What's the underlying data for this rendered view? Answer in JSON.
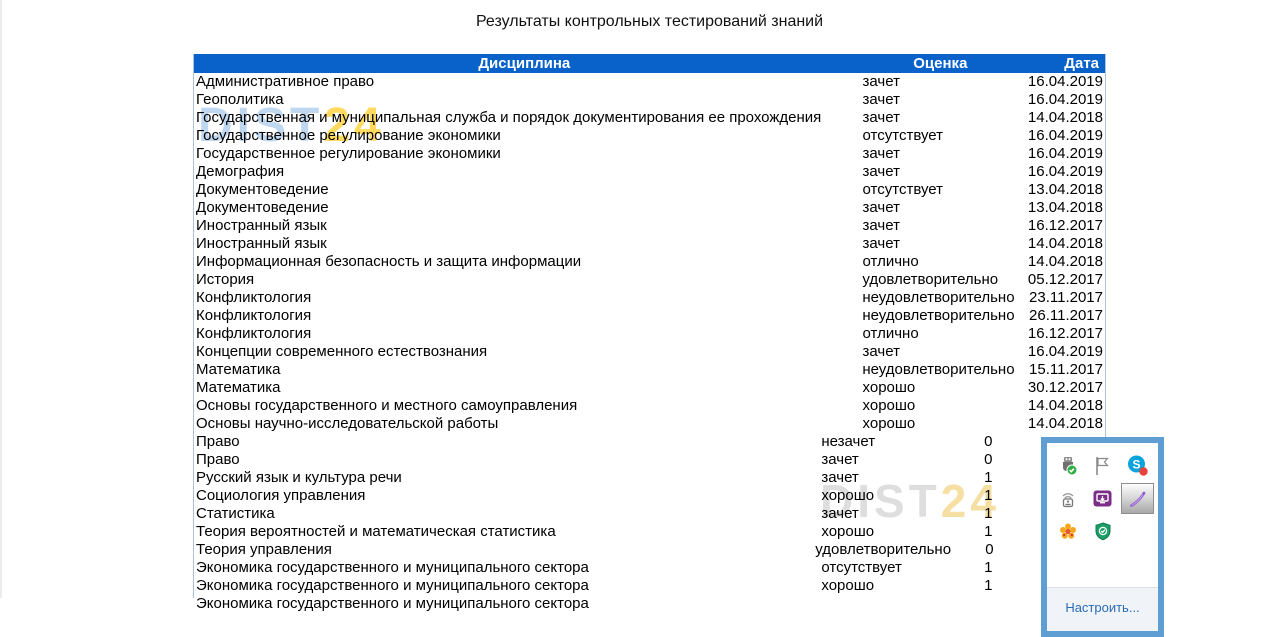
{
  "page": {
    "title": "Результаты контрольных тестирований знаний"
  },
  "colors": {
    "header_bg": "#0862ca",
    "header_text": "#ffffff",
    "table_border": "#a9c3da",
    "popup_border": "#5f9ed2",
    "link": "#2b6cb8",
    "watermark_blue": "#82afe1",
    "watermark_yellow": "#ffcd28",
    "watermark_gray": "#d9d9d9",
    "watermark_cream": "#eec458"
  },
  "table": {
    "headers": {
      "discipline": "Дисциплина",
      "grade": "Оценка",
      "date": "Дата"
    },
    "rows": [
      {
        "d": "Административное право",
        "g": "зачет",
        "t": "16.04.2019",
        "frag": false
      },
      {
        "d": "Геополитика",
        "g": "зачет",
        "t": "16.04.2019",
        "frag": false
      },
      {
        "d": "Государственная и муниципальная служба и порядок документирования ее прохождения",
        "g": "зачет",
        "t": "14.04.2018",
        "frag": false
      },
      {
        "d": "Государственное регулирование экономики",
        "g": "отсутствует",
        "t": "16.04.2019",
        "frag": false
      },
      {
        "d": "Государственное регулирование экономики",
        "g": "зачет",
        "t": "16.04.2019",
        "frag": false
      },
      {
        "d": "Демография",
        "g": "зачет",
        "t": "16.04.2019",
        "frag": false
      },
      {
        "d": "Документоведение",
        "g": "отсутствует",
        "t": "13.04.2018",
        "frag": false
      },
      {
        "d": "Документоведение",
        "g": "зачет",
        "t": "13.04.2018",
        "frag": false
      },
      {
        "d": "Иностранный язык",
        "g": "зачет",
        "t": "16.12.2017",
        "frag": false
      },
      {
        "d": "Иностранный язык",
        "g": "зачет",
        "t": "14.04.2018",
        "frag": false
      },
      {
        "d": "Информационная безопасность и защита информации",
        "g": "отлично",
        "t": "14.04.2018",
        "frag": false
      },
      {
        "d": "История",
        "g": "удовлетворительно",
        "t": "05.12.2017",
        "frag": false
      },
      {
        "d": "Конфликтология",
        "g": "неудовлетворительно",
        "t": "23.11.2017",
        "frag": false
      },
      {
        "d": "Конфликтология",
        "g": "неудовлетворительно",
        "t": "26.11.2017",
        "frag": false
      },
      {
        "d": "Конфликтология",
        "g": "отлично",
        "t": "16.12.2017",
        "frag": false
      },
      {
        "d": "Концепции современного естествознания",
        "g": "зачет",
        "t": "16.04.2019",
        "frag": false
      },
      {
        "d": "Математика",
        "g": "неудовлетворительно",
        "t": "15.11.2017",
        "frag": false
      },
      {
        "d": "Математика",
        "g": "хорошо",
        "t": "30.12.2017",
        "frag": false
      },
      {
        "d": "Основы государственного и местного самоуправления",
        "g": "хорошо",
        "t": "14.04.2018",
        "frag": false
      },
      {
        "d": "Основы научно-исследовательской работы",
        "g": "хорошо",
        "t": "14.04.2018",
        "frag": false
      },
      {
        "d": "Право",
        "g": "незачет",
        "t": "0",
        "frag": true
      },
      {
        "d": "Право",
        "g": "зачет",
        "t": "0",
        "frag": true
      },
      {
        "d": "Русский язык и культура речи",
        "g": "зачет",
        "t": "1",
        "frag": true
      },
      {
        "d": "Социология управления",
        "g": "хорошо",
        "t": "1",
        "frag": true
      },
      {
        "d": "Статистика",
        "g": "зачет",
        "t": "1",
        "frag": true
      },
      {
        "d": "Теория вероятностей и математическая статистика",
        "g": "хорошо",
        "t": "1",
        "frag": true
      },
      {
        "d": "Теория управления",
        "g": "удовлетворительно",
        "t": "0",
        "frag": true
      },
      {
        "d": "Экономика государственного и муниципального сектора",
        "g": "отсутствует",
        "t": "1",
        "frag": true
      },
      {
        "d": "Экономика государственного и муниципального сектора",
        "g": "хорошо",
        "t": "1",
        "frag": true
      },
      {
        "d": "Экономика государственного и муниципального сектора",
        "g": "",
        "t": "",
        "frag": false
      }
    ]
  },
  "watermarks": {
    "top": {
      "main": "DIST",
      "accent": "24"
    },
    "bottom": {
      "main": "DIST",
      "accent": "24"
    }
  },
  "tray_popup": {
    "icons": [
      {
        "name": "usb-safely-remove-icon",
        "selected": false
      },
      {
        "name": "flag-icon",
        "selected": false
      },
      {
        "name": "skype-notification-icon",
        "selected": false
      },
      {
        "name": "wireless-device-icon",
        "selected": false
      },
      {
        "name": "purple-display-app-icon",
        "selected": false
      },
      {
        "name": "pen-input-icon",
        "selected": true
      },
      {
        "name": "flower-app-icon",
        "selected": false
      },
      {
        "name": "shield-antivirus-icon",
        "selected": false
      }
    ],
    "configure_label": "Настроить..."
  }
}
